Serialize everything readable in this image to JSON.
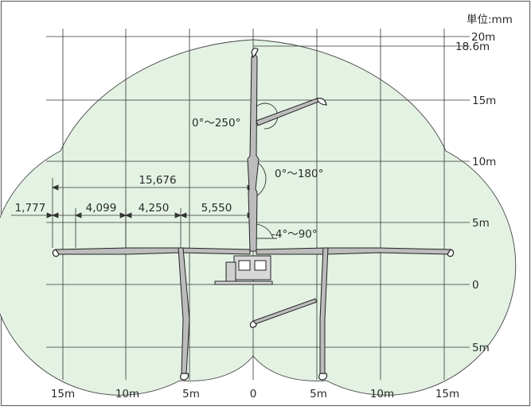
{
  "unit_label": "単位:mm",
  "colors": {
    "reach_fill": "#e3f2e3",
    "line": "#333333",
    "frame": "#666666"
  },
  "right_labels": {
    "h20": "20m",
    "h18_6": "18.6m",
    "h15": "15m",
    "h10": "10m",
    "h5": "5m",
    "h0": "0",
    "hneg5": "5m"
  },
  "bottom_labels": {
    "l15": "15m",
    "l10": "10m",
    "l5": "5m",
    "c0": "0",
    "r5": "5m",
    "r10": "10m",
    "r15": "15m"
  },
  "dimensions": {
    "total": "15,676",
    "extra": "1,777",
    "seg1": "4,099",
    "seg2": "4,250",
    "seg3": "5,550"
  },
  "angles": {
    "upper": "0°〜250°",
    "middle": "0°〜180°",
    "lower": "-4°〜90°"
  }
}
